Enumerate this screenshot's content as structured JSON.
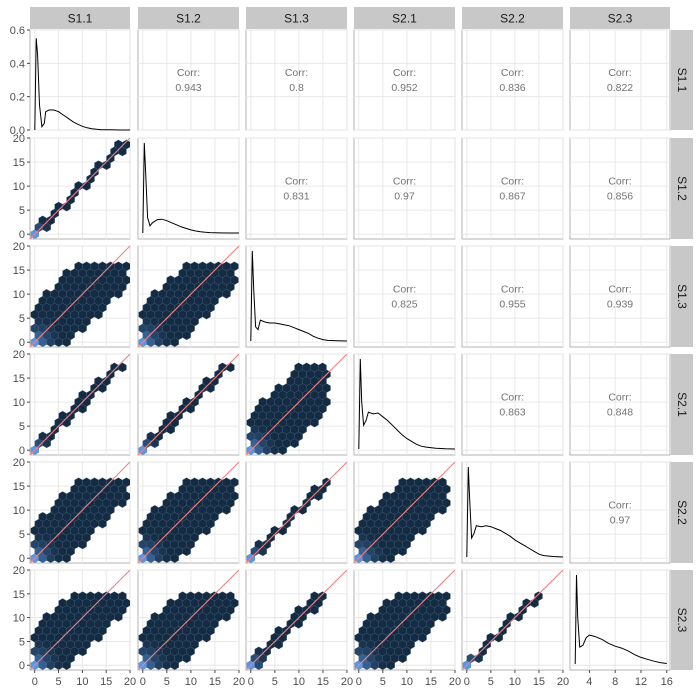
{
  "chart_data": {
    "type": "pairs-matrix",
    "variables": [
      "S1.1",
      "S1.2",
      "S1.3",
      "S2.1",
      "S2.2",
      "S2.3"
    ],
    "correlation_label": "Corr:",
    "upper_panel": "correlation",
    "diagonal_panel": "density",
    "lower_panel": "hexbin",
    "reference_line": {
      "type": "identity",
      "color": "#f08080"
    },
    "correlations": [
      {
        "row": "S1.1",
        "col": "S1.2",
        "value": "0.943"
      },
      {
        "row": "S1.1",
        "col": "S1.3",
        "value": "0.8"
      },
      {
        "row": "S1.1",
        "col": "S2.1",
        "value": "0.952"
      },
      {
        "row": "S1.1",
        "col": "S2.2",
        "value": "0.836"
      },
      {
        "row": "S1.1",
        "col": "S2.3",
        "value": "0.822"
      },
      {
        "row": "S1.2",
        "col": "S1.3",
        "value": "0.831"
      },
      {
        "row": "S1.2",
        "col": "S2.1",
        "value": "0.97"
      },
      {
        "row": "S1.2",
        "col": "S2.2",
        "value": "0.867"
      },
      {
        "row": "S1.2",
        "col": "S2.3",
        "value": "0.856"
      },
      {
        "row": "S1.3",
        "col": "S2.1",
        "value": "0.825"
      },
      {
        "row": "S1.3",
        "col": "S2.2",
        "value": "0.955"
      },
      {
        "row": "S1.3",
        "col": "S2.3",
        "value": "0.939"
      },
      {
        "row": "S2.1",
        "col": "S2.2",
        "value": "0.863"
      },
      {
        "row": "S2.1",
        "col": "S2.3",
        "value": "0.848"
      },
      {
        "row": "S2.2",
        "col": "S2.3",
        "value": "0.97"
      }
    ],
    "x_axes": [
      {
        "var": "S1.1",
        "range": [
          -1,
          20
        ],
        "ticks": [
          0,
          5,
          10,
          15,
          20
        ]
      },
      {
        "var": "S1.2",
        "range": [
          -1,
          20
        ],
        "ticks": [
          0,
          5,
          10,
          15,
          20
        ]
      },
      {
        "var": "S1.3",
        "range": [
          -1,
          20
        ],
        "ticks": [
          0,
          5,
          10,
          15,
          20
        ]
      },
      {
        "var": "S2.1",
        "range": [
          -1,
          20
        ],
        "ticks": [
          0,
          5,
          10,
          15,
          20
        ]
      },
      {
        "var": "S2.2",
        "range": [
          -1,
          20
        ],
        "ticks": [
          0,
          5,
          10,
          15,
          20
        ]
      },
      {
        "var": "S2.3",
        "range": [
          1,
          16.5
        ],
        "ticks": [
          4,
          8,
          12,
          16
        ]
      }
    ],
    "y_axes": [
      {
        "var": "S1.1",
        "range": [
          0,
          0.6
        ],
        "ticks": [
          0.0,
          0.2,
          0.4,
          0.6
        ],
        "tick_labels": [
          "0.0",
          "0.2",
          "0.4",
          "0.6"
        ]
      },
      {
        "var": "S1.2",
        "range": [
          -1,
          20
        ],
        "ticks": [
          0,
          5,
          10,
          15,
          20
        ]
      },
      {
        "var": "S1.3",
        "range": [
          -1,
          20
        ],
        "ticks": [
          0,
          5,
          10,
          15,
          20
        ]
      },
      {
        "var": "S2.1",
        "range": [
          -1,
          20
        ],
        "ticks": [
          0,
          5,
          10,
          15,
          20
        ]
      },
      {
        "var": "S2.2",
        "range": [
          -1,
          20
        ],
        "ticks": [
          0,
          5,
          10,
          15,
          20
        ]
      },
      {
        "var": "S2.3",
        "range": [
          -1,
          20
        ],
        "ticks": [
          0,
          5,
          10,
          15,
          20
        ]
      }
    ],
    "maxima": [
      19,
      19,
      15.5,
      18,
      15.5,
      15.5
    ],
    "hex_spread": {
      "0": {
        "1": 1.0,
        "2": 7.5,
        "3": 1.3,
        "4": 7.0,
        "5": 7.5
      },
      "1": {
        "2": 7.5,
        "3": 1.3,
        "4": 7.5,
        "5": 7.5
      },
      "2": {
        "3": 7.5,
        "4": 1.1,
        "5": 1.5
      },
      "3": {
        "4": 7.5,
        "5": 7.5
      },
      "4": {
        "5": 1.0
      }
    },
    "densities": [
      {
        "var": "S1.1",
        "x": [
          0,
          0.3,
          0.6,
          1,
          1.5,
          2,
          2.3,
          3,
          4,
          5,
          6,
          7,
          8,
          9,
          10,
          11,
          12,
          13,
          14,
          16,
          18,
          20
        ],
        "y": [
          0,
          0.55,
          0.45,
          0.15,
          0.02,
          0.04,
          0.11,
          0.12,
          0.12,
          0.11,
          0.09,
          0.07,
          0.05,
          0.035,
          0.022,
          0.013,
          0.008,
          0.004,
          0.002,
          0.001,
          0,
          0
        ]
      },
      {
        "var": "S1.2",
        "x": [
          0,
          0.3,
          0.6,
          1,
          1.5,
          2,
          3,
          4,
          5,
          6,
          7,
          8,
          9,
          10,
          11,
          12,
          13,
          14,
          16,
          18,
          20
        ],
        "y": [
          0,
          0.88,
          0.58,
          0.15,
          0.07,
          0.1,
          0.13,
          0.135,
          0.12,
          0.1,
          0.08,
          0.06,
          0.045,
          0.03,
          0.02,
          0.012,
          0.007,
          0.004,
          0.001,
          0,
          0
        ]
      },
      {
        "var": "S1.3",
        "x": [
          0,
          0.3,
          0.6,
          1,
          1.5,
          2,
          3,
          4,
          5,
          6,
          7,
          8,
          9,
          10,
          11,
          12,
          13,
          14,
          15,
          16,
          18,
          20
        ],
        "y": [
          0,
          0.95,
          0.55,
          0.15,
          0.12,
          0.22,
          0.2,
          0.19,
          0.19,
          0.18,
          0.17,
          0.16,
          0.14,
          0.12,
          0.1,
          0.08,
          0.05,
          0.03,
          0.015,
          0.006,
          0.002,
          0
        ]
      },
      {
        "var": "S2.1",
        "x": [
          0,
          0.3,
          0.6,
          1,
          1.5,
          2,
          3,
          4,
          5,
          6,
          7,
          8,
          9,
          10,
          11,
          12,
          13,
          14,
          16,
          18,
          20
        ],
        "y": [
          0,
          0.95,
          0.5,
          0.25,
          0.3,
          0.39,
          0.37,
          0.38,
          0.34,
          0.3,
          0.25,
          0.2,
          0.15,
          0.11,
          0.08,
          0.05,
          0.03,
          0.02,
          0.008,
          0.002,
          0
        ]
      },
      {
        "var": "S2.2",
        "x": [
          0,
          0.3,
          0.6,
          1,
          1.5,
          2,
          3,
          4,
          5,
          6,
          7,
          8,
          9,
          10,
          11,
          12,
          13,
          14,
          15,
          16,
          18,
          20
        ],
        "y": [
          0,
          0.95,
          0.6,
          0.2,
          0.25,
          0.33,
          0.32,
          0.33,
          0.32,
          0.3,
          0.28,
          0.25,
          0.22,
          0.18,
          0.15,
          0.12,
          0.09,
          0.06,
          0.03,
          0.015,
          0.005,
          0
        ]
      },
      {
        "var": "S2.3",
        "x": [
          1.8,
          2.0,
          2.2,
          2.5,
          3.0,
          3.5,
          4,
          4.5,
          5,
          6,
          7,
          8,
          9,
          10,
          11,
          12,
          13,
          14,
          15,
          16
        ],
        "y": [
          0,
          0.95,
          0.5,
          0.18,
          0.2,
          0.28,
          0.31,
          0.3,
          0.29,
          0.26,
          0.22,
          0.19,
          0.17,
          0.14,
          0.1,
          0.07,
          0.05,
          0.03,
          0.015,
          0.005
        ]
      }
    ]
  }
}
